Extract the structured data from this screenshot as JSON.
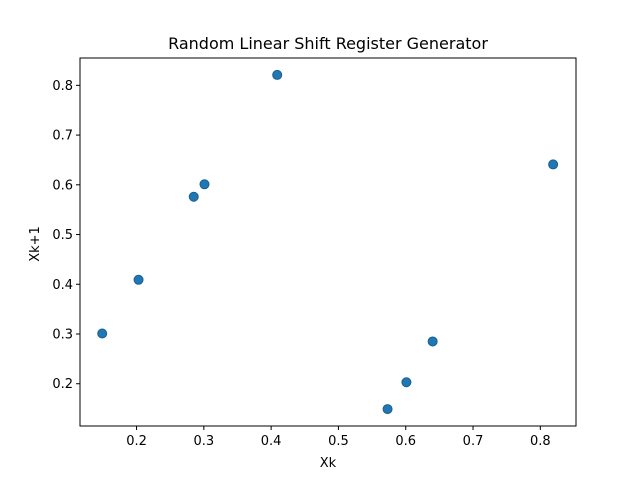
{
  "chart_data": {
    "type": "scatter",
    "title": "Random Linear Shift Register Generator",
    "xlabel": "Xk",
    "ylabel": "Xk+1",
    "xlim": [
      0.116,
      0.853
    ],
    "ylim": [
      0.115,
      0.855
    ],
    "xticks": [
      0.2,
      0.3,
      0.4,
      0.5,
      0.6,
      0.7,
      0.8
    ],
    "xtick_labels": [
      "0.2",
      "0.3",
      "0.4",
      "0.5",
      "0.6",
      "0.7",
      "0.8"
    ],
    "yticks": [
      0.2,
      0.3,
      0.4,
      0.5,
      0.6,
      0.7,
      0.8
    ],
    "ytick_labels": [
      "0.2",
      "0.3",
      "0.4",
      "0.5",
      "0.6",
      "0.7",
      "0.8"
    ],
    "grid": false,
    "marker_color": "#1f77b4",
    "marker_edge_color": "#1a5f8f",
    "points": [
      {
        "x": 0.149,
        "y": 0.301
      },
      {
        "x": 0.203,
        "y": 0.409
      },
      {
        "x": 0.285,
        "y": 0.576
      },
      {
        "x": 0.301,
        "y": 0.601
      },
      {
        "x": 0.409,
        "y": 0.821
      },
      {
        "x": 0.573,
        "y": 0.149
      },
      {
        "x": 0.601,
        "y": 0.203
      },
      {
        "x": 0.64,
        "y": 0.285
      },
      {
        "x": 0.819,
        "y": 0.641
      }
    ]
  }
}
